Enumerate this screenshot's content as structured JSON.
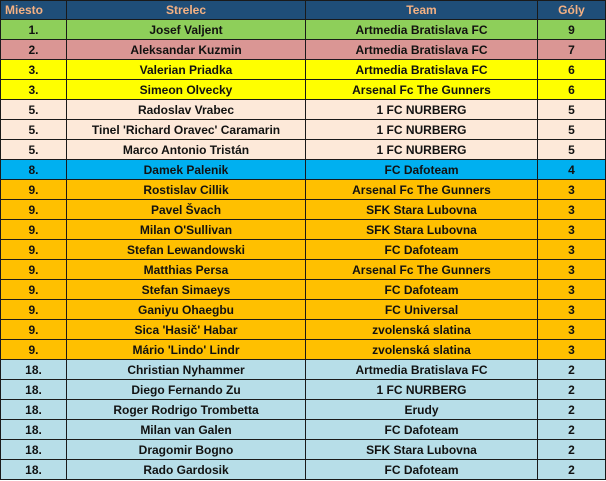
{
  "headers": {
    "rank": "Miesto",
    "scorer": "Strelec",
    "team": "Team",
    "goals": "Góly"
  },
  "rows": [
    {
      "rank": "1.",
      "name": "Josef Valjent",
      "team": "Artmedia Bratislava FC",
      "goals": "9",
      "color": "#8ecf5a"
    },
    {
      "rank": "2.",
      "name": "Aleksandar Kuzmin",
      "team": "Artmedia Bratislava FC",
      "goals": "7",
      "color": "#da9694"
    },
    {
      "rank": "3.",
      "name": "Valerian Priadka",
      "team": "Artmedia Bratislava FC",
      "goals": "6",
      "color": "#ffff00"
    },
    {
      "rank": "3.",
      "name": "Simeon Olvecky",
      "team": "Arsenal Fc The Gunners",
      "goals": "6",
      "color": "#ffff00"
    },
    {
      "rank": "5.",
      "name": "Radoslav Vrabec",
      "team": "1 FC NURBERG",
      "goals": "5",
      "color": "#fde9d9"
    },
    {
      "rank": "5.",
      "name": "Tinel 'Richard Oravec' Caramarin",
      "team": "1 FC NURBERG",
      "goals": "5",
      "color": "#fde9d9"
    },
    {
      "rank": "5.",
      "name": "Marco Antonio Tristán",
      "team": "1 FC NURBERG",
      "goals": "5",
      "color": "#fde9d9"
    },
    {
      "rank": "8.",
      "name": "Damek Palenik",
      "team": "FC Dafoteam",
      "goals": "4",
      "color": "#00b0f0"
    },
    {
      "rank": "9.",
      "name": "Rostislav Cillik",
      "team": "Arsenal Fc The Gunners",
      "goals": "3",
      "color": "#ffc000"
    },
    {
      "rank": "9.",
      "name": "Pavel Švach",
      "team": "SFK Stara Lubovna",
      "goals": "3",
      "color": "#ffc000"
    },
    {
      "rank": "9.",
      "name": "Milan O'Sullivan",
      "team": "SFK Stara Lubovna",
      "goals": "3",
      "color": "#ffc000"
    },
    {
      "rank": "9.",
      "name": "Stefan Lewandowski",
      "team": "FC Dafoteam",
      "goals": "3",
      "color": "#ffc000"
    },
    {
      "rank": "9.",
      "name": "Matthias Persa",
      "team": "Arsenal Fc The Gunners",
      "goals": "3",
      "color": "#ffc000"
    },
    {
      "rank": "9.",
      "name": "Stefan Simaeys",
      "team": "FC Dafoteam",
      "goals": "3",
      "color": "#ffc000"
    },
    {
      "rank": "9.",
      "name": "Ganiyu Ohaegbu",
      "team": "FC Universal",
      "goals": "3",
      "color": "#ffc000"
    },
    {
      "rank": "9.",
      "name": "Sica 'Hasič' Habar",
      "team": "zvolenská slatina",
      "goals": "3",
      "color": "#ffc000"
    },
    {
      "rank": "9.",
      "name": "Mário 'Lindo' Lindr",
      "team": "zvolenská slatina",
      "goals": "3",
      "color": "#ffc000"
    },
    {
      "rank": "18.",
      "name": "Christian Nyhammer",
      "team": "Artmedia Bratislava FC",
      "goals": "2",
      "color": "#b7dee8"
    },
    {
      "rank": "18.",
      "name": "Diego Fernando Zu",
      "team": "1 FC NURBERG",
      "goals": "2",
      "color": "#b7dee8"
    },
    {
      "rank": "18.",
      "name": "Roger Rodrigo Trombetta",
      "team": "Erudy",
      "goals": "2",
      "color": "#b7dee8"
    },
    {
      "rank": "18.",
      "name": "Milan van Galen",
      "team": "FC Dafoteam",
      "goals": "2",
      "color": "#b7dee8"
    },
    {
      "rank": "18.",
      "name": "Dragomir Bogno",
      "team": "SFK Stara Lubovna",
      "goals": "2",
      "color": "#b7dee8"
    },
    {
      "rank": "18.",
      "name": "Rado Gardosik",
      "team": "FC Dafoteam",
      "goals": "2",
      "color": "#b7dee8"
    }
  ]
}
